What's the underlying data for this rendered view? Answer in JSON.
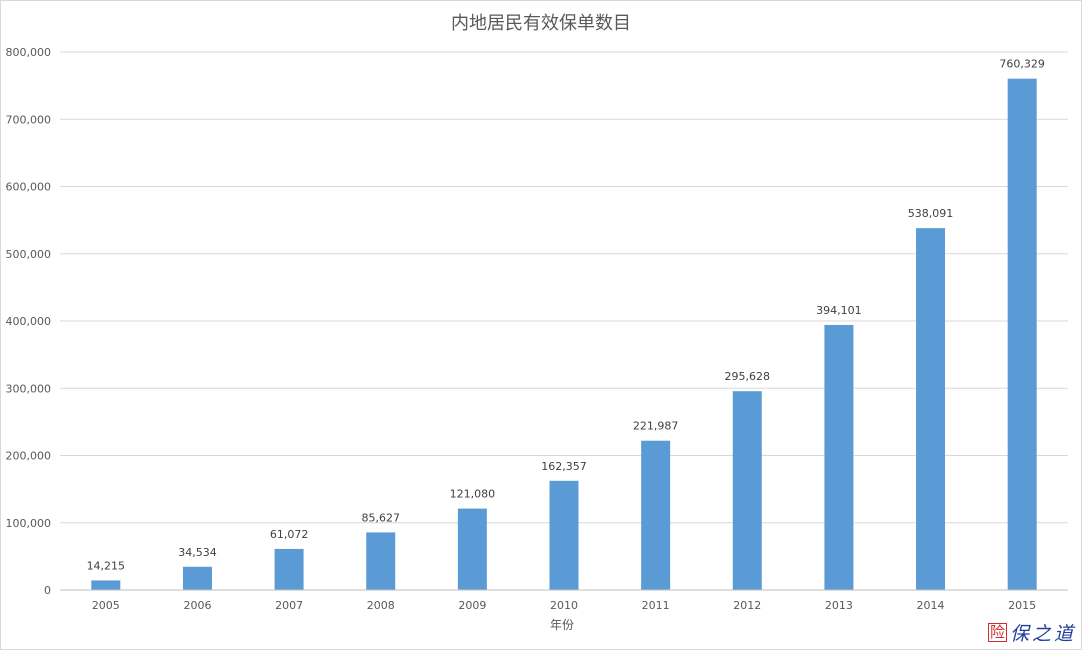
{
  "chart_data": {
    "type": "bar",
    "title": "内地居民有效保单数目",
    "xlabel": "年份",
    "ylabel": "",
    "categories": [
      "2005",
      "2006",
      "2007",
      "2008",
      "2009",
      "2010",
      "2011",
      "2012",
      "2013",
      "2014",
      "2015"
    ],
    "values": [
      14215,
      34534,
      61072,
      85627,
      121080,
      162357,
      221987,
      295628,
      394101,
      538091,
      760329
    ],
    "data_labels": [
      "14,215",
      "34,534",
      "61,072",
      "85,627",
      "121,080",
      "162,357",
      "221,987",
      "295,628",
      "394,101",
      "538,091",
      "760,329"
    ],
    "y_ticks": [
      0,
      100000,
      200000,
      300000,
      400000,
      500000,
      600000,
      700000,
      800000
    ],
    "y_tick_labels": [
      "0",
      "100,000",
      "200,000",
      "300,000",
      "400,000",
      "500,000",
      "600,000",
      "700,000",
      "800,000"
    ],
    "ylim": [
      0,
      800000
    ],
    "grid": true,
    "legend": "none",
    "bar_color": "#5b9bd5",
    "gridline_color": "#d9d9d9"
  },
  "watermark": {
    "seal_text": "险",
    "text": "保之道",
    "seal_color": "#d22c2c",
    "text_color": "#1f3f9a"
  }
}
